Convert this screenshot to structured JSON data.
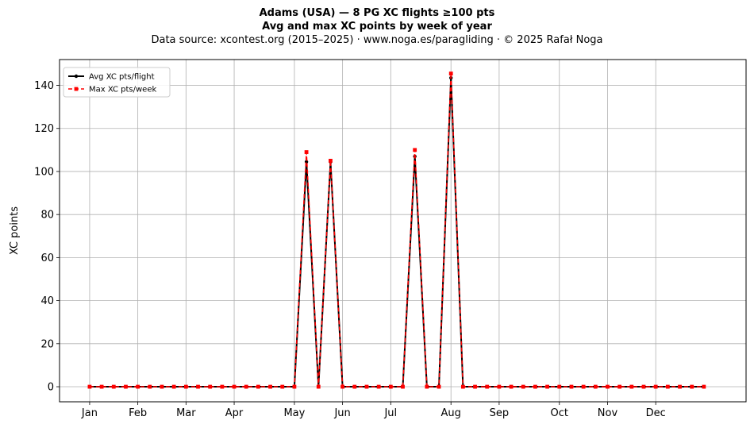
{
  "chart_data": {
    "type": "line",
    "title": "Adams (USA)  —  8 PG XC flights ≥100 pts",
    "subtitle": "Avg and max XC points by week of year",
    "source_line": "Data source: xcontest.org (2015–2025)  ·  www.noga.es/paragliding  ·  © 2025 Rafał Noga",
    "xlabel": "",
    "ylabel": "XC points",
    "xlim": [
      -2.5,
      54.5
    ],
    "ylim": [
      -7,
      152
    ],
    "yticks": [
      0,
      20,
      40,
      60,
      80,
      100,
      120,
      140
    ],
    "month_ticks": [
      {
        "label": "Jan",
        "week": 0
      },
      {
        "label": "Feb",
        "week": 4
      },
      {
        "label": "Mar",
        "week": 8
      },
      {
        "label": "Apr",
        "week": 12
      },
      {
        "label": "May",
        "week": 17
      },
      {
        "label": "Jun",
        "week": 21
      },
      {
        "label": "Jul",
        "week": 25
      },
      {
        "label": "Aug",
        "week": 30
      },
      {
        "label": "Sep",
        "week": 34
      },
      {
        "label": "Oct",
        "week": 39
      },
      {
        "label": "Nov",
        "week": 43
      },
      {
        "label": "Dec",
        "week": 47
      }
    ],
    "grid": true,
    "legend_position": "top-left",
    "x": [
      0,
      1,
      2,
      3,
      4,
      5,
      6,
      7,
      8,
      9,
      10,
      11,
      12,
      13,
      14,
      15,
      16,
      17,
      18,
      19,
      20,
      21,
      22,
      23,
      24,
      25,
      26,
      27,
      28,
      29,
      30,
      31,
      32,
      33,
      34,
      35,
      36,
      37,
      38,
      39,
      40,
      41,
      42,
      43,
      44,
      45,
      46,
      47,
      48,
      49,
      50,
      51
    ],
    "series": [
      {
        "name": "Avg XC pts/flight",
        "color": "#000000",
        "style": "solid",
        "marker": "circle",
        "values": [
          0,
          0,
          0,
          0,
          0,
          0,
          0,
          0,
          0,
          0,
          0,
          0,
          0,
          0,
          0,
          0,
          0,
          0,
          104.5,
          0,
          104.5,
          0,
          0,
          0,
          0,
          0,
          0,
          107,
          0,
          0,
          143.5,
          0,
          0,
          0,
          0,
          0,
          0,
          0,
          0,
          0,
          0,
          0,
          0,
          0,
          0,
          0,
          0,
          0,
          0,
          0,
          0,
          0
        ]
      },
      {
        "name": "Max XC pts/week",
        "color": "#ff0000",
        "style": "dashed",
        "marker": "square",
        "values": [
          0,
          0,
          0,
          0,
          0,
          0,
          0,
          0,
          0,
          0,
          0,
          0,
          0,
          0,
          0,
          0,
          0,
          0,
          109,
          0,
          105,
          0,
          0,
          0,
          0,
          0,
          0,
          110,
          0,
          0,
          145.5,
          0,
          0,
          0,
          0,
          0,
          0,
          0,
          0,
          0,
          0,
          0,
          0,
          0,
          0,
          0,
          0,
          0,
          0,
          0,
          0,
          0
        ]
      }
    ]
  }
}
